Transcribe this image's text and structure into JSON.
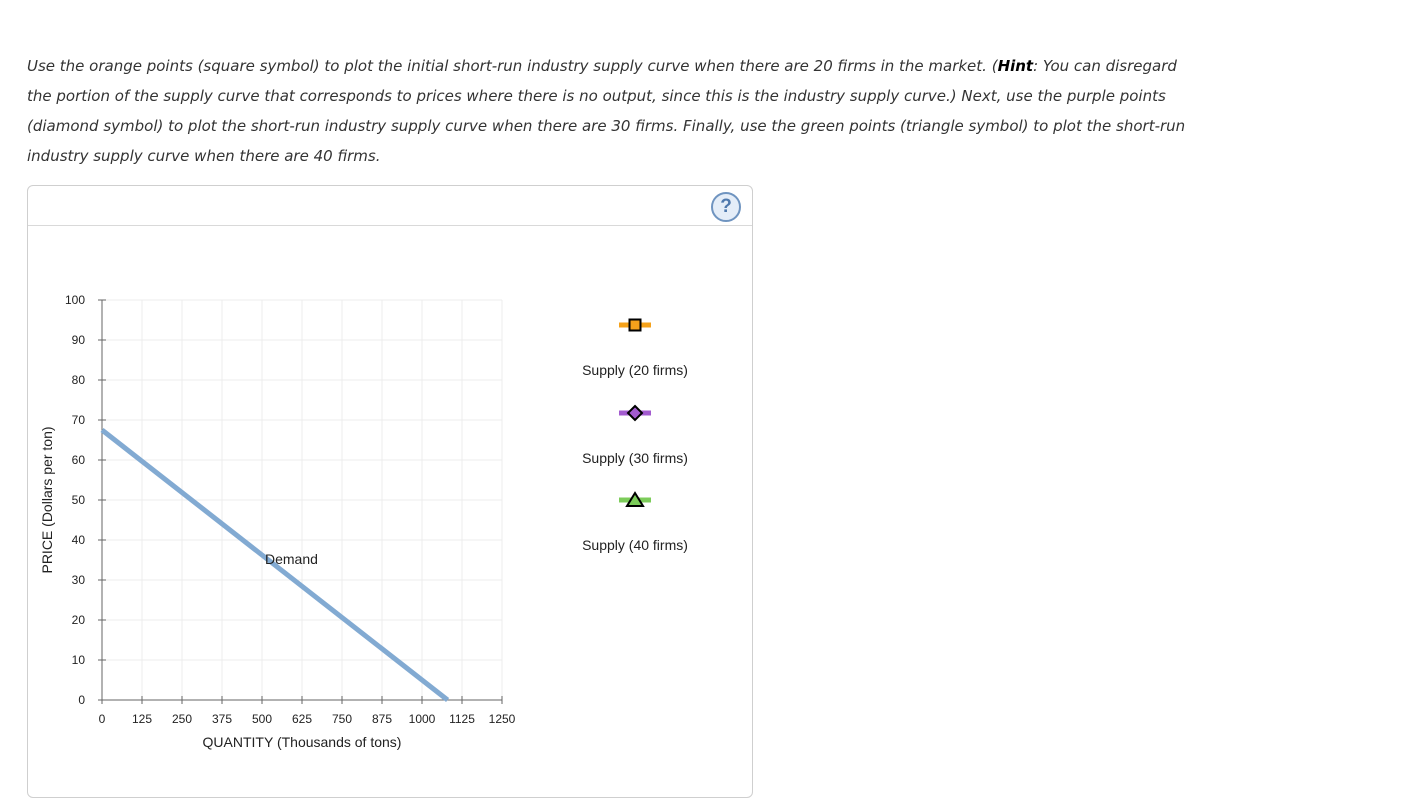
{
  "instructions": {
    "part1": "Use the orange points (square symbol) to plot the initial short-run industry supply curve when there are 20 firms in the market. (",
    "hint_word": "Hint",
    "part2": ": You can disregard the portion of the supply curve that corresponds to prices where there is no output, since this is the industry supply curve.) Next, use the purple points (diamond symbol) to plot the short-run industry supply curve when there are 30 firms. Finally, use the green points (triangle symbol) to plot the short-run industry supply curve when there are 40 firms."
  },
  "help_icon": {
    "glyph": "?",
    "icon": "help-question-icon"
  },
  "colors": {
    "demand": "#82aad2",
    "supply20": "#f5a21b",
    "supply30": "#a35bcf",
    "supply40": "#7ccc5a",
    "grid": "#ececec",
    "axis": "#666666"
  },
  "chart_data": {
    "type": "line",
    "xlabel": "QUANTITY (Thousands of tons)",
    "ylabel": "PRICE (Dollars per ton)",
    "xlim": [
      0,
      1250
    ],
    "ylim": [
      0,
      100
    ],
    "x_ticks": [
      0,
      125,
      250,
      375,
      500,
      625,
      750,
      875,
      1000,
      1125,
      1250
    ],
    "y_ticks": [
      0,
      10,
      20,
      30,
      40,
      50,
      60,
      70,
      80,
      90,
      100
    ],
    "grid": true,
    "series": [
      {
        "name": "Demand",
        "points": [
          [
            0,
            67.5
          ],
          [
            1080,
            0
          ]
        ],
        "label_at": [
          500,
          35
        ]
      }
    ],
    "legend_position": "right",
    "legend": [
      {
        "name": "Supply (20 firms)",
        "symbol": "square",
        "color": "#f5a21b"
      },
      {
        "name": "Supply (30 firms)",
        "symbol": "diamond",
        "color": "#a35bcf"
      },
      {
        "name": "Supply (40 firms)",
        "symbol": "triangle",
        "color": "#7ccc5a"
      }
    ]
  }
}
